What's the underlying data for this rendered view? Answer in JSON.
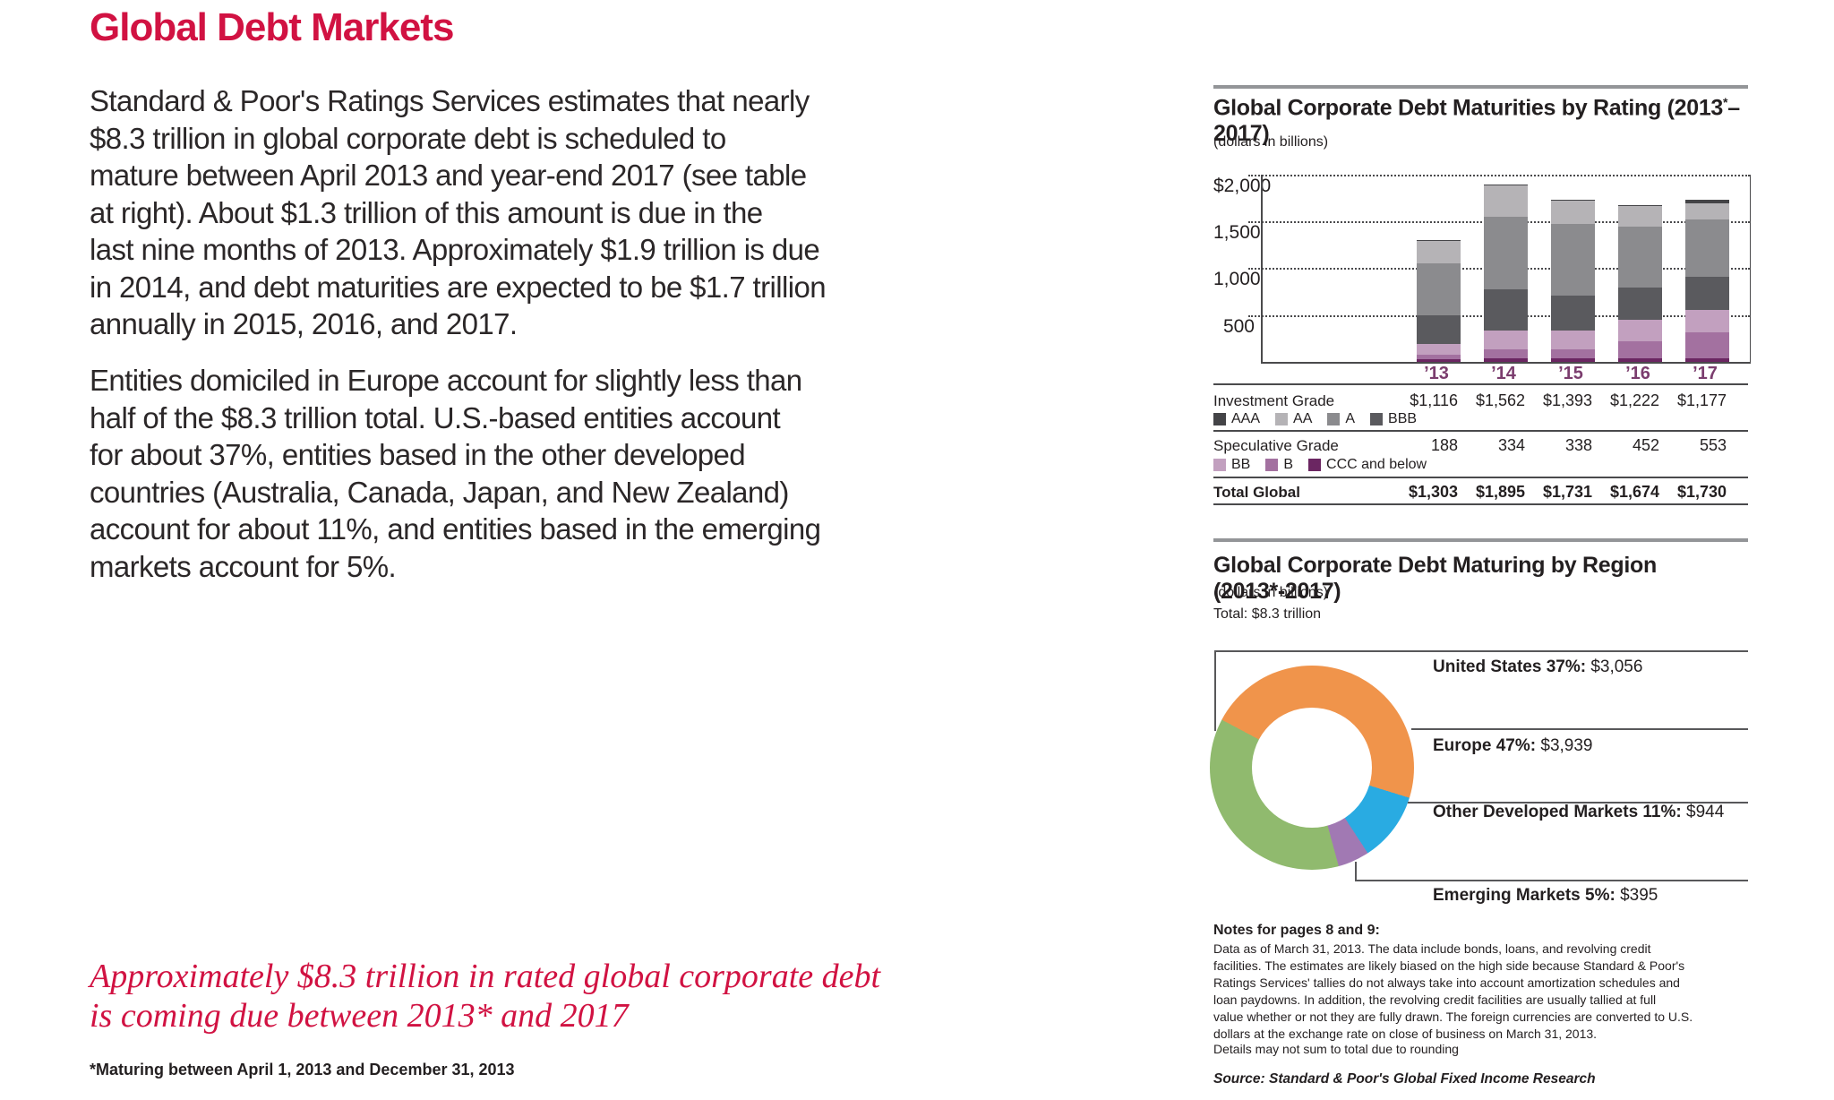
{
  "colors": {
    "accent_red": "#d11242",
    "body_text": "#2b2728",
    "rule_gray": "#939598",
    "axis_gray": "#4a4a4c",
    "year_tick_plum": "#7b3d6e"
  },
  "left": {
    "title": "Global Debt Markets",
    "para1": "Standard & Poor's Ratings Services estimates that nearly\n$8.3 trillion in global corporate debt is scheduled to\nmature between April 2013 and year-end 2017 (see table\nat right). About $1.3 trillion of this amount is due in the\nlast nine months of 2013. Approximately $1.9 trillion is due\nin 2014, and debt maturities are expected to be $1.7 trillion\nannually in 2015, 2016, and 2017.",
    "para2": "Entities domiciled in Europe account for slightly less than\nhalf of the $8.3 trillion total. U.S.-based entities account\nfor about 37%, entities based in the other developed\ncountries (Australia, Canada, Japan, and New Zealand)\naccount for about 11%, and entities based in the emerging\nmarkets account for 5%.",
    "pullquote": "Approximately $8.3 trillion in rated global corporate debt\nis coming due between 2013* and 2017",
    "footnote": "*Maturing between April 1, 2013 and December 31, 2013"
  },
  "rating_section": {
    "title_prefix": "Global Corporate Debt Maturities by Rating (2013",
    "title_sup": "*",
    "title_suffix": "–2017)",
    "subtitle": "(dollars in billions)",
    "table": {
      "row_investment": {
        "label": "Investment Grade",
        "values": [
          "$1,116",
          "$1,562",
          "$1,393",
          "$1,222",
          "$1,177"
        ]
      },
      "legend_investment": [
        "AAA",
        "AA",
        "A",
        "BBB"
      ],
      "row_speculative": {
        "label": "Speculative Grade",
        "values": [
          "188",
          "334",
          "338",
          "452",
          "553"
        ]
      },
      "legend_speculative": [
        "BB",
        "B",
        "CCC and below"
      ],
      "row_total": {
        "label": "Total Global",
        "values": [
          "$1,303",
          "$1,895",
          "$1,731",
          "$1,674",
          "$1,730"
        ]
      }
    }
  },
  "region_section": {
    "title": "Global Corporate Debt Maturing by Region (2013*-2017)",
    "subtitle": "(dollars in billions)",
    "total_line": "Total: $8.3 trillion",
    "labels": [
      {
        "name_pct": "United States 37%:",
        "value": "$3,056"
      },
      {
        "name_pct": "Europe 47%:",
        "value": "$3,939"
      },
      {
        "name_pct": "Other Developed Markets 11%:",
        "value": "$944"
      },
      {
        "name_pct": "Emerging Markets 5%:",
        "value": "$395"
      }
    ]
  },
  "notes": {
    "heading": "Notes for pages 8 and 9:",
    "body": "Data as of March 31, 2013. The data include bonds, loans, and revolving credit\nfacilities. The estimates are likely biased on the high side because Standard & Poor's\nRatings Services' tallies do not always take into account amortization schedules and\nloan paydowns. In addition, the revolving credit facilities are usually tallied at full\nvalue whether or not they are fully drawn. The foreign currencies are converted to U.S.\ndollars at the exchange rate on close of business on March 31, 2013.",
    "rounding": "Details may not sum to total due to rounding",
    "source": "Source: Standard & Poor's Global Fixed Income Research"
  },
  "chart_data": [
    {
      "type": "bar",
      "stacked": true,
      "title": "Global Corporate Debt Maturities by Rating (2013*–2017)",
      "units": "dollars in billions",
      "categories": [
        "’13",
        "’14",
        "’15",
        "’16",
        "’17"
      ],
      "series_order": "bottom_to_top",
      "series": [
        {
          "name": "CCC and below",
          "color": "#6b2662",
          "values": [
            28,
            36,
            38,
            37,
            40
          ]
        },
        {
          "name": "B",
          "color": "#a371a0",
          "values": [
            50,
            100,
            95,
            180,
            273
          ]
        },
        {
          "name": "BB",
          "color": "#c2a0bf",
          "values": [
            110,
            198,
            205,
            235,
            240
          ]
        },
        {
          "name": "BBB",
          "color": "#5a5a5e",
          "values": [
            306,
            440,
            373,
            342,
            357
          ]
        },
        {
          "name": "A",
          "color": "#8b8b8e",
          "values": [
            560,
            776,
            767,
            650,
            615
          ]
        },
        {
          "name": "AA",
          "color": "#b5b3b6",
          "values": [
            237,
            336,
            243,
            220,
            170
          ]
        },
        {
          "name": "AAA",
          "color": "#444447",
          "values": [
            13,
            10,
            10,
            10,
            35
          ]
        }
      ],
      "group_totals": {
        "investment_grade": [
          1116,
          1562,
          1393,
          1222,
          1177
        ],
        "speculative_grade": [
          188,
          334,
          338,
          452,
          553
        ],
        "total_global": [
          1303,
          1895,
          1731,
          1674,
          1730
        ]
      },
      "ylim": [
        0,
        2000
      ],
      "ytick_values": [
        2000,
        1500,
        1000,
        500
      ],
      "ytick_labels": [
        "$2,000",
        "1,500",
        "1,000",
        "500"
      ],
      "grid": "dotted-horizontal",
      "xtick_color": "#7b3d6e"
    },
    {
      "type": "donut",
      "title": "Global Corporate Debt Maturing by Region (2013*-2017)",
      "units": "dollars in billions",
      "total": "$8.3 trillion",
      "slices": [
        {
          "label": "United States",
          "pct": 37,
          "value_billions": 3056,
          "color": "#90ba6e"
        },
        {
          "label": "Europe",
          "pct": 47,
          "value_billions": 3939,
          "color": "#f0944b"
        },
        {
          "label": "Other Developed Markets",
          "pct": 11,
          "value_billions": 944,
          "color": "#29abe2"
        },
        {
          "label": "Emerging Markets",
          "pct": 5,
          "value_billions": 395,
          "color": "#a179b3"
        }
      ],
      "start_angle_deg": -62,
      "arc_order": [
        "Europe",
        "Other Developed Markets",
        "Emerging Markets",
        "United States"
      ],
      "legend_position": "right-leader-lines"
    }
  ]
}
